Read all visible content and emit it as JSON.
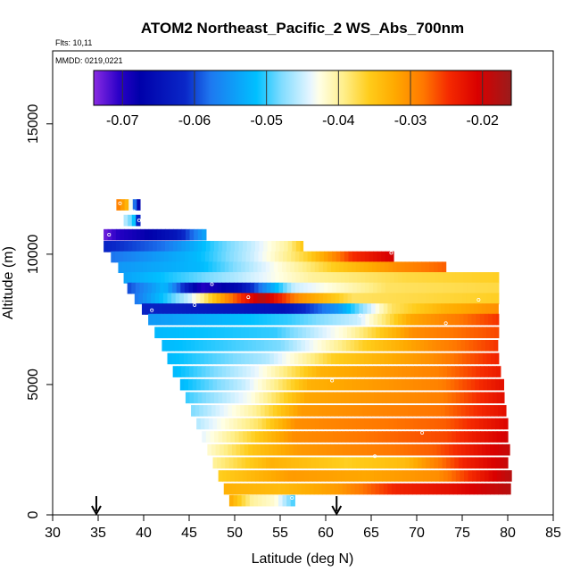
{
  "chart_data": {
    "type": "heatmap",
    "title": "ATOM2 Northeast_Pacific_2 WS_Abs_700nm",
    "flights_label": "Flts: 10,11",
    "dates_label": "MMDD: 0219,0221",
    "xlabel": "Latitude (deg N)",
    "ylabel": "Altitude (m)",
    "xlim": [
      30,
      85
    ],
    "ylim": [
      0,
      17800
    ],
    "x_ticks": [
      "30",
      "35",
      "40",
      "45",
      "50",
      "55",
      "60",
      "65",
      "70",
      "75",
      "80",
      "85"
    ],
    "y_ticks": [
      "0",
      "5000",
      "10000",
      "15000"
    ],
    "colorbar": {
      "range": [
        -0.074,
        -0.016
      ],
      "ticks": [
        -0.07,
        -0.06,
        -0.05,
        -0.04,
        -0.03,
        -0.02
      ],
      "tick_labels": [
        "-0.07",
        "-0.06",
        "-0.05",
        "-0.04",
        "-0.03",
        "-0.02"
      ]
    },
    "flight_markers_latitude": [
      34.8,
      61.2
    ],
    "bands": [
      {
        "alt": 11900,
        "lat0": 37.0,
        "lat1": 39.6,
        "stops": [
          [
            0,
            -0.028
          ],
          [
            0.5,
            -0.034
          ],
          [
            0.8,
            -0.06
          ],
          [
            1,
            -0.07
          ]
        ]
      },
      {
        "alt": 11300,
        "lat0": 37.8,
        "lat1": 39.6,
        "stops": [
          [
            0,
            -0.045
          ],
          [
            0.6,
            -0.05
          ],
          [
            1,
            -0.068
          ]
        ]
      },
      {
        "alt": 10750,
        "lat0": 35.6,
        "lat1": 47.0,
        "stops": [
          [
            0,
            -0.073
          ],
          [
            0.15,
            -0.07
          ],
          [
            0.4,
            -0.068
          ],
          [
            0.7,
            -0.064
          ],
          [
            1,
            -0.053
          ]
        ]
      },
      {
        "alt": 10300,
        "lat0": 35.6,
        "lat1": 57.5,
        "stops": [
          [
            0,
            -0.062
          ],
          [
            0.3,
            -0.058
          ],
          [
            0.55,
            -0.05
          ],
          [
            0.75,
            -0.045
          ],
          [
            0.92,
            -0.04
          ],
          [
            1,
            -0.035
          ]
        ]
      },
      {
        "alt": 9900,
        "lat0": 36.4,
        "lat1": 67.5,
        "stops": [
          [
            0,
            -0.058
          ],
          [
            0.3,
            -0.052
          ],
          [
            0.5,
            -0.045
          ],
          [
            0.7,
            -0.036
          ],
          [
            0.85,
            -0.025
          ],
          [
            1,
            -0.02
          ]
        ]
      },
      {
        "alt": 9500,
        "lat0": 37.2,
        "lat1": 73.2,
        "stops": [
          [
            0,
            -0.055
          ],
          [
            0.25,
            -0.052
          ],
          [
            0.45,
            -0.044
          ],
          [
            0.65,
            -0.036
          ],
          [
            0.85,
            -0.03
          ],
          [
            1,
            -0.027
          ]
        ]
      },
      {
        "alt": 9100,
        "lat0": 37.8,
        "lat1": 79.0,
        "stops": [
          [
            0,
            -0.054
          ],
          [
            0.3,
            -0.046
          ],
          [
            0.5,
            -0.04
          ],
          [
            0.75,
            -0.037
          ],
          [
            1,
            -0.036
          ]
        ]
      },
      {
        "alt": 8700,
        "lat0": 38.2,
        "lat1": 79.0,
        "stops": [
          [
            0,
            -0.06
          ],
          [
            0.1,
            -0.052
          ],
          [
            0.2,
            -0.07
          ],
          [
            0.3,
            -0.066
          ],
          [
            0.45,
            -0.045
          ],
          [
            0.7,
            -0.038
          ],
          [
            1,
            -0.037
          ]
        ]
      },
      {
        "alt": 8300,
        "lat0": 39.0,
        "lat1": 79.0,
        "stops": [
          [
            0,
            -0.058
          ],
          [
            0.15,
            -0.045
          ],
          [
            0.25,
            -0.03
          ],
          [
            0.35,
            -0.018
          ],
          [
            0.45,
            -0.03
          ],
          [
            0.6,
            -0.038
          ],
          [
            1,
            -0.036
          ]
        ]
      },
      {
        "alt": 7900,
        "lat0": 39.8,
        "lat1": 79.0,
        "stops": [
          [
            0,
            -0.062
          ],
          [
            0.4,
            -0.065
          ],
          [
            0.55,
            -0.055
          ],
          [
            0.7,
            -0.038
          ],
          [
            0.85,
            -0.033
          ],
          [
            1,
            -0.03
          ]
        ]
      },
      {
        "alt": 7500,
        "lat0": 40.5,
        "lat1": 79.0,
        "stops": [
          [
            0,
            -0.055
          ],
          [
            0.4,
            -0.05
          ],
          [
            0.6,
            -0.045
          ],
          [
            0.75,
            -0.032
          ],
          [
            0.9,
            -0.028
          ],
          [
            1,
            -0.025
          ]
        ]
      },
      {
        "alt": 7000,
        "lat0": 41.2,
        "lat1": 79.0,
        "stops": [
          [
            0,
            -0.052
          ],
          [
            0.35,
            -0.05
          ],
          [
            0.55,
            -0.042
          ],
          [
            0.75,
            -0.03
          ],
          [
            1,
            -0.026
          ]
        ]
      },
      {
        "alt": 6500,
        "lat0": 42.0,
        "lat1": 79.0,
        "stops": [
          [
            0,
            -0.052
          ],
          [
            0.35,
            -0.048
          ],
          [
            0.6,
            -0.036
          ],
          [
            0.8,
            -0.03
          ],
          [
            1,
            -0.025
          ]
        ]
      },
      {
        "alt": 6000,
        "lat0": 42.6,
        "lat1": 79.0,
        "stops": [
          [
            0,
            -0.052
          ],
          [
            0.3,
            -0.046
          ],
          [
            0.5,
            -0.036
          ],
          [
            0.8,
            -0.03
          ],
          [
            1,
            -0.024
          ]
        ]
      },
      {
        "alt": 5500,
        "lat0": 43.2,
        "lat1": 79.4,
        "stops": [
          [
            0,
            -0.052
          ],
          [
            0.25,
            -0.044
          ],
          [
            0.45,
            -0.033
          ],
          [
            0.8,
            -0.029
          ],
          [
            1,
            -0.023
          ]
        ]
      },
      {
        "alt": 5000,
        "lat0": 44.0,
        "lat1": 79.6,
        "stops": [
          [
            0,
            -0.052
          ],
          [
            0.2,
            -0.045
          ],
          [
            0.4,
            -0.033
          ],
          [
            0.8,
            -0.029
          ],
          [
            1,
            -0.022
          ]
        ]
      },
      {
        "alt": 4500,
        "lat0": 44.6,
        "lat1": 79.6,
        "stops": [
          [
            0,
            -0.05
          ],
          [
            0.2,
            -0.043
          ],
          [
            0.38,
            -0.032
          ],
          [
            0.8,
            -0.029
          ],
          [
            1,
            -0.022
          ]
        ]
      },
      {
        "alt": 4000,
        "lat0": 45.2,
        "lat1": 79.8,
        "stops": [
          [
            0,
            -0.048
          ],
          [
            0.2,
            -0.04
          ],
          [
            0.35,
            -0.031
          ],
          [
            0.8,
            -0.028
          ],
          [
            1,
            -0.022
          ]
        ]
      },
      {
        "alt": 3500,
        "lat0": 45.8,
        "lat1": 80.0,
        "stops": [
          [
            0,
            -0.046
          ],
          [
            0.2,
            -0.038
          ],
          [
            0.32,
            -0.03
          ],
          [
            0.8,
            -0.027
          ],
          [
            1,
            -0.021
          ]
        ]
      },
      {
        "alt": 3000,
        "lat0": 46.4,
        "lat1": 80.0,
        "stops": [
          [
            0,
            -0.044
          ],
          [
            0.15,
            -0.037
          ],
          [
            0.3,
            -0.03
          ],
          [
            0.8,
            -0.026
          ],
          [
            1,
            -0.02
          ]
        ]
      },
      {
        "alt": 2500,
        "lat0": 47.0,
        "lat1": 80.2,
        "stops": [
          [
            0,
            -0.042
          ],
          [
            0.15,
            -0.035
          ],
          [
            0.3,
            -0.031
          ],
          [
            0.75,
            -0.027
          ],
          [
            1,
            -0.019
          ]
        ]
      },
      {
        "alt": 2000,
        "lat0": 47.6,
        "lat1": 80.2,
        "stops": [
          [
            0,
            -0.04
          ],
          [
            0.2,
            -0.033
          ],
          [
            0.45,
            -0.036
          ],
          [
            0.65,
            -0.034
          ],
          [
            0.85,
            -0.024
          ],
          [
            1,
            -0.019
          ]
        ]
      },
      {
        "alt": 1500,
        "lat0": 48.2,
        "lat1": 80.4,
        "stops": [
          [
            0,
            -0.036
          ],
          [
            0.25,
            -0.031
          ],
          [
            0.5,
            -0.032
          ],
          [
            0.75,
            -0.03
          ],
          [
            1,
            -0.018
          ]
        ]
      },
      {
        "alt": 1000,
        "lat0": 48.8,
        "lat1": 80.4,
        "stops": [
          [
            0,
            -0.033
          ],
          [
            0.2,
            -0.034
          ],
          [
            0.4,
            -0.031
          ],
          [
            0.6,
            -0.024
          ],
          [
            0.8,
            -0.022
          ],
          [
            1,
            -0.018
          ]
        ]
      },
      {
        "alt": 550,
        "lat0": 49.4,
        "lat1": 56.6,
        "stops": [
          [
            0,
            -0.032
          ],
          [
            0.35,
            -0.04
          ],
          [
            0.7,
            -0.042
          ],
          [
            1,
            -0.05
          ]
        ]
      }
    ],
    "sample_points": [
      {
        "lat": 36.2,
        "alt": 10750
      },
      {
        "lat": 37.4,
        "alt": 11950
      },
      {
        "lat": 38.9,
        "alt": 11650
      },
      {
        "lat": 39.5,
        "alt": 11300
      },
      {
        "lat": 47.5,
        "alt": 8850
      },
      {
        "lat": 51.5,
        "alt": 8350
      },
      {
        "lat": 45.6,
        "alt": 8050
      },
      {
        "lat": 40.9,
        "alt": 7850
      },
      {
        "lat": 63.8,
        "alt": 7650
      },
      {
        "lat": 73.2,
        "alt": 7350
      },
      {
        "lat": 76.8,
        "alt": 8250
      },
      {
        "lat": 67.2,
        "alt": 10050
      },
      {
        "lat": 60.7,
        "alt": 5150
      },
      {
        "lat": 70.6,
        "alt": 3150
      },
      {
        "lat": 65.4,
        "alt": 2250
      },
      {
        "lat": 80.6,
        "alt": 1050
      },
      {
        "lat": 56.3,
        "alt": 650
      }
    ]
  }
}
